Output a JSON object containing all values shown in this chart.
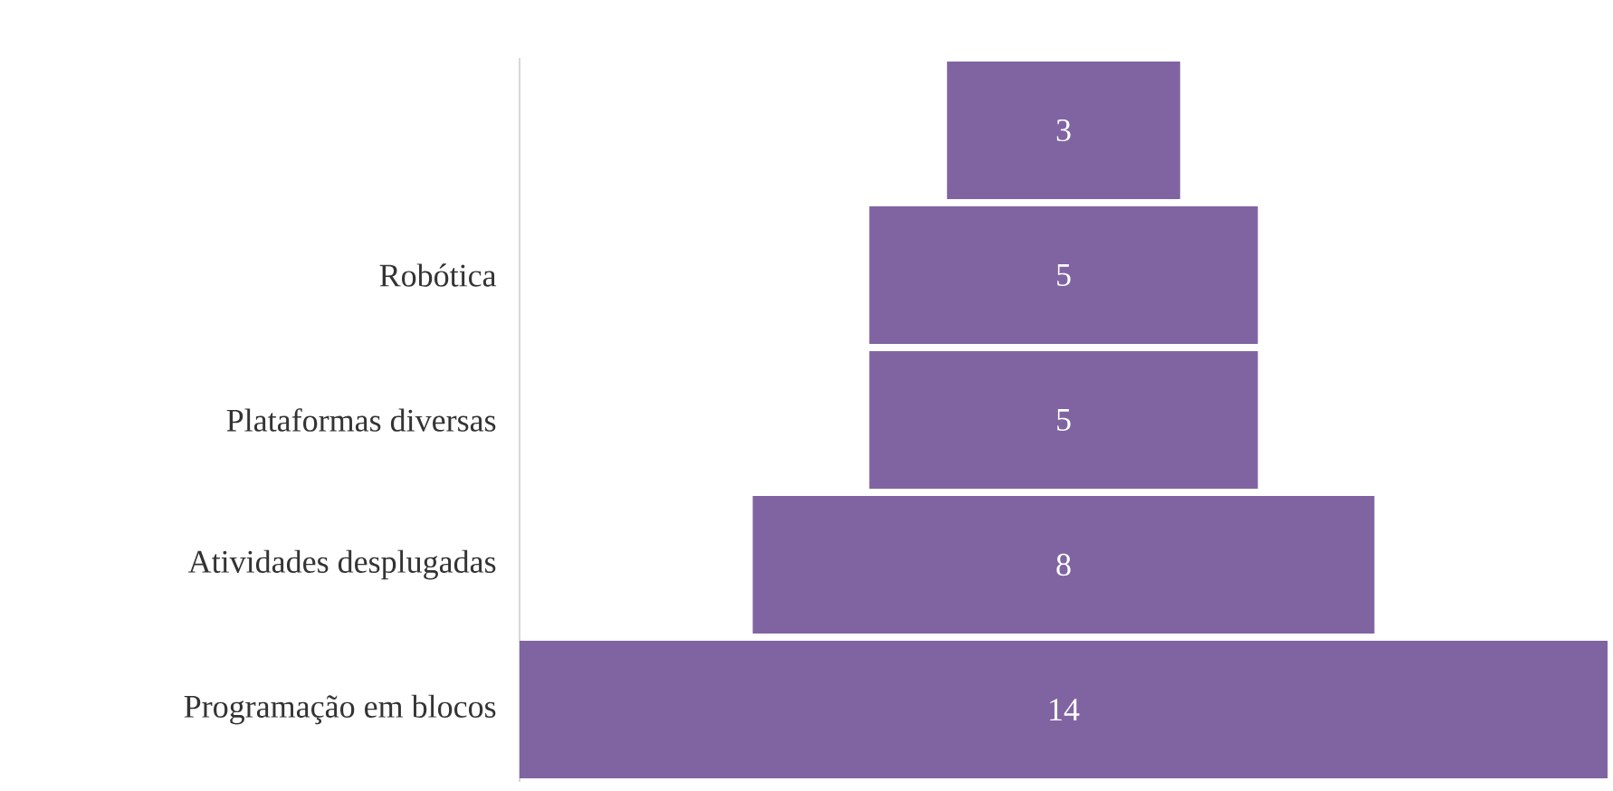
{
  "chart_data": {
    "type": "other",
    "categories": [
      null,
      "Robótica",
      "Plataformas diversas",
      "Atividades desplugadas",
      "Programação em blocos"
    ],
    "values": [
      3,
      5,
      5,
      8,
      14
    ],
    "color": "#8064a2",
    "data_labels": true
  }
}
